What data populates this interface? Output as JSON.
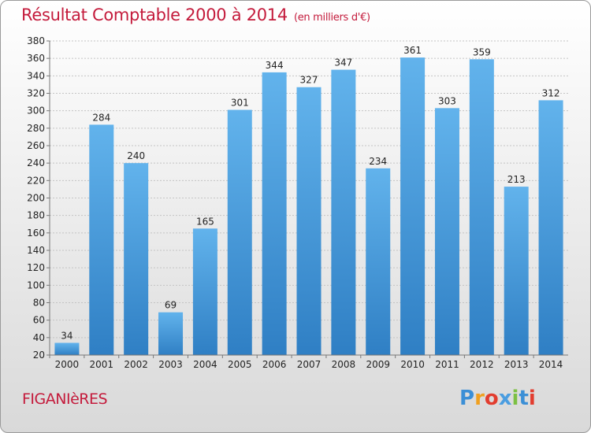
{
  "chart_data": {
    "type": "bar",
    "title": "Résultat Comptable 2000 à 2014",
    "subtitle": "(en milliers d'€)",
    "categories": [
      "2000",
      "2001",
      "2002",
      "2003",
      "2004",
      "2005",
      "2006",
      "2007",
      "2008",
      "2009",
      "2010",
      "2011",
      "2012",
      "2013",
      "2014"
    ],
    "values": [
      34,
      284,
      240,
      69,
      165,
      301,
      344,
      327,
      347,
      234,
      361,
      303,
      359,
      213,
      312
    ],
    "ylim": [
      20,
      380
    ],
    "ytick_step": 20,
    "grid": true,
    "bar_color": "#4a9de0",
    "title_color": "#c41b3c"
  },
  "footer": {
    "commune": "FIGANIèRES",
    "logo_letters": [
      "P",
      "r",
      "o",
      "x",
      "i",
      "t",
      "i"
    ],
    "logo_colors": [
      "#3b8fd6",
      "#f0a020",
      "#e23d2f",
      "#4a9de0",
      "#7cc043",
      "#3b8fd6",
      "#e23d2f"
    ]
  }
}
